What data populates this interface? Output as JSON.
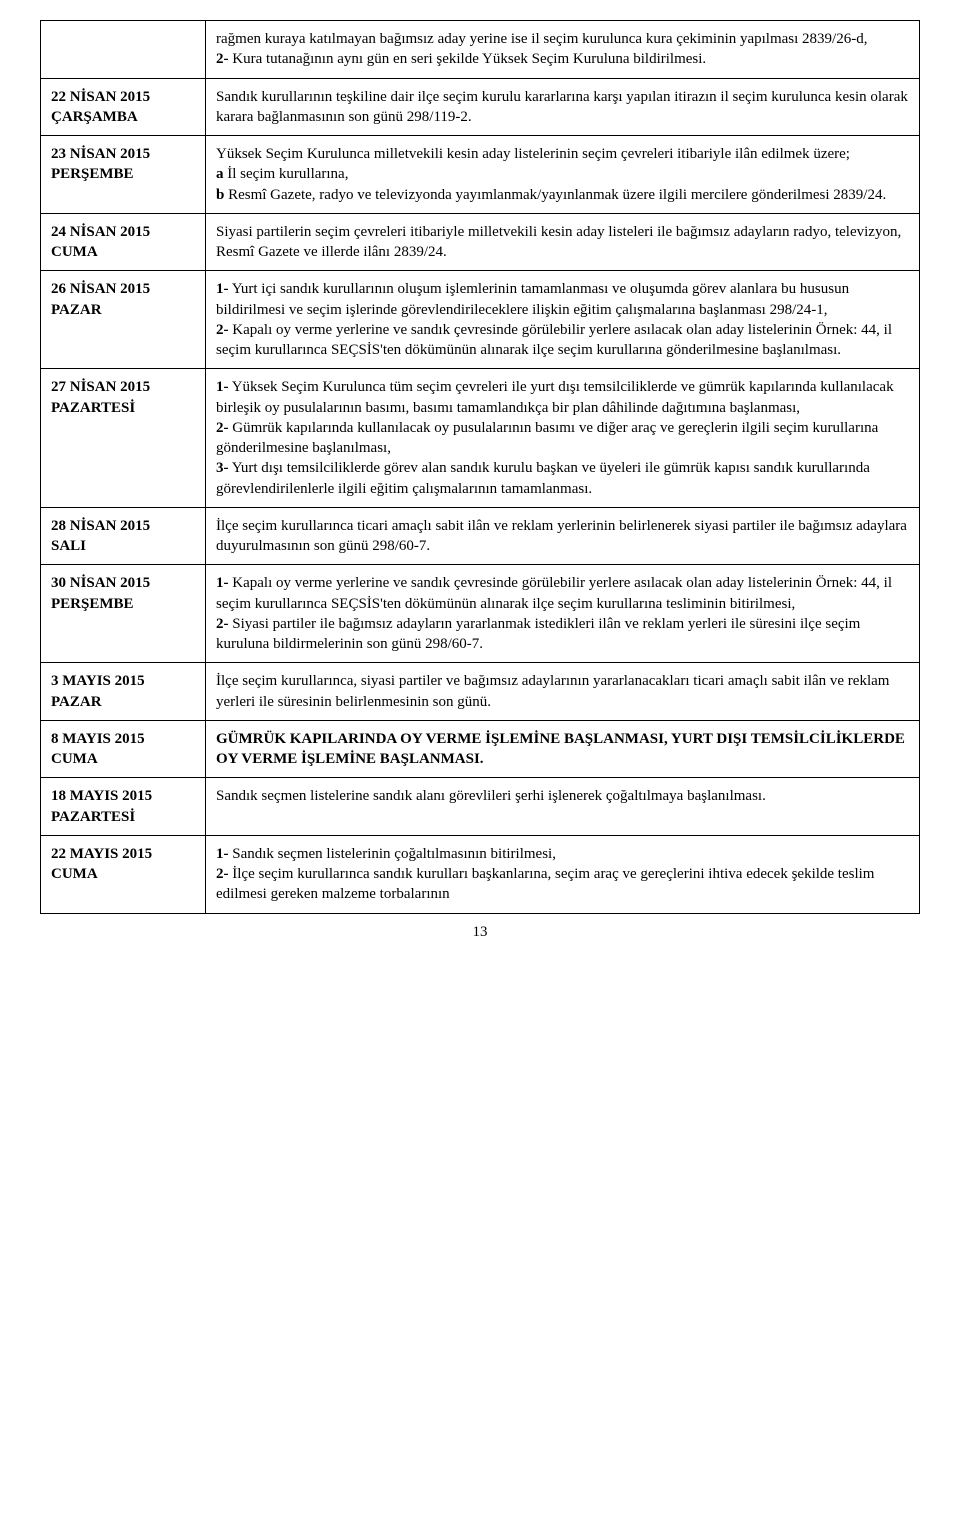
{
  "rows": [
    {
      "date_l1": "",
      "date_l2": "",
      "parts": [
        "rağmen kuraya katılmayan bağımsız aday yerine ise il seçim kurulunca kura çekiminin yapılması 2839/26-d,",
        "<b>2-</b> Kura tutanağının aynı gün en seri şekilde Yüksek Seçim Kuruluna bildirilmesi."
      ]
    },
    {
      "date_l1": "22 NİSAN 2015",
      "date_l2": "ÇARŞAMBA",
      "parts": [
        "Sandık kurullarının teşkiline dair ilçe seçim kurulu kararlarına karşı yapılan itirazın il seçim kurulunca kesin olarak karara bağlanmasının son günü 298/119-2."
      ]
    },
    {
      "date_l1": "23 NİSAN 2015",
      "date_l2": "PERŞEMBE",
      "parts": [
        "Yüksek Seçim Kurulunca milletvekili kesin aday listelerinin seçim çevreleri itibariyle ilân edilmek üzere;",
        "<b>a</b> İl seçim kurullarına,",
        "<b>b</b> Resmî Gazete, radyo ve televizyonda yayımlanmak/yayınlanmak üzere ilgili mercilere gönderilmesi 2839/24."
      ]
    },
    {
      "date_l1": "24 NİSAN 2015",
      "date_l2": "CUMA",
      "parts": [
        "Siyasi partilerin seçim çevreleri itibariyle milletvekili kesin aday listeleri ile bağımsız adayların radyo, televizyon, Resmî Gazete ve illerde ilânı 2839/24."
      ]
    },
    {
      "date_l1": "26 NİSAN 2015",
      "date_l2": "PAZAR",
      "parts": [
        "<b>1-</b> Yurt içi sandık kurullarının oluşum işlemlerinin tamamlanması ve oluşumda görev alanlara bu hususun bildirilmesi ve seçim işlerinde görevlendirileceklere ilişkin eğitim çalışmalarına başlanması 298/24-1,",
        "<b>2-</b> Kapalı oy verme yerlerine ve sandık çevresinde görülebilir yerlere asılacak olan aday listelerinin Örnek: 44, il seçim kurullarınca SEÇSİS'ten dökümünün alınarak ilçe seçim kurullarına gönderilmesine başlanılması."
      ]
    },
    {
      "date_l1": "27 NİSAN 2015",
      "date_l2": "PAZARTESİ",
      "parts": [
        "<b>1-</b> Yüksek Seçim Kurulunca tüm seçim çevreleri ile yurt dışı temsilciliklerde ve gümrük kapılarında kullanılacak birleşik oy pusulalarının basımı, basımı tamamlandıkça bir plan dâhilinde dağıtımına başlanması,",
        "<b>2-</b> Gümrük kapılarında kullanılacak oy pusulalarının basımı ve diğer araç ve gereçlerin ilgili seçim kurullarına gönderilmesine başlanılması,",
        "<b>3-</b> Yurt dışı temsilciliklerde görev alan sandık kurulu başkan ve üyeleri ile gümrük kapısı sandık kurullarında görevlendirilenlerle ilgili eğitim çalışmalarının tamamlanması."
      ]
    },
    {
      "date_l1": "28 NİSAN 2015",
      "date_l2": "SALI",
      "parts": [
        "İlçe seçim kurullarınca ticari amaçlı sabit ilân ve reklam yerlerinin belirlenerek siyasi partiler ile bağımsız adaylara duyurulmasının son günü 298/60-7."
      ]
    },
    {
      "date_l1": "30 NİSAN 2015",
      "date_l2": "PERŞEMBE",
      "parts": [
        "<b>1-</b> Kapalı oy verme yerlerine ve sandık çevresinde görülebilir yerlere asılacak olan aday listelerinin Örnek: 44, il seçim kurullarınca SEÇSİS'ten dökümünün alınarak ilçe seçim kurullarına tesliminin bitirilmesi,",
        "<b>2-</b> Siyasi partiler ile bağımsız adayların yararlanmak istedikleri ilân ve reklam yerleri ile süresini ilçe seçim kuruluna bildirmelerinin son günü 298/60-7."
      ]
    },
    {
      "date_l1": "3 MAYIS 2015",
      "date_l2": "PAZAR",
      "parts": [
        "İlçe seçim kurullarınca, siyasi partiler ve bağımsız adaylarının yararlanacakları ticari amaçlı sabit ilân ve reklam yerleri ile süresinin belirlenmesinin son günü."
      ]
    },
    {
      "date_l1": "8 MAYIS 2015",
      "date_l2": "CUMA",
      "parts": [
        "<b>GÜMRÜK KAPILARINDA OY VERME İŞLEMİNE BAŞLANMASI, YURT DIŞI TEMSİLCİLİKLERDE OY VERME İŞLEMİNE BAŞLANMASI.</b>"
      ]
    },
    {
      "date_l1": "18 MAYIS 2015",
      "date_l2": "PAZARTESİ",
      "parts": [
        "Sandık seçmen listelerine sandık alanı görevlileri şerhi işlenerek çoğaltılmaya başlanılması."
      ]
    },
    {
      "date_l1": "22 MAYIS 2015",
      "date_l2": "CUMA",
      "parts": [
        "<b>1-</b> Sandık seçmen listelerinin çoğaltılmasının bitirilmesi,",
        "<b>2-</b> İlçe seçim kurullarınca sandık kurulları başkanlarına, seçim araç ve gereçlerini ihtiva edecek şekilde teslim edilmesi gereken malzeme torbalarının"
      ]
    }
  ],
  "page_number": "13"
}
